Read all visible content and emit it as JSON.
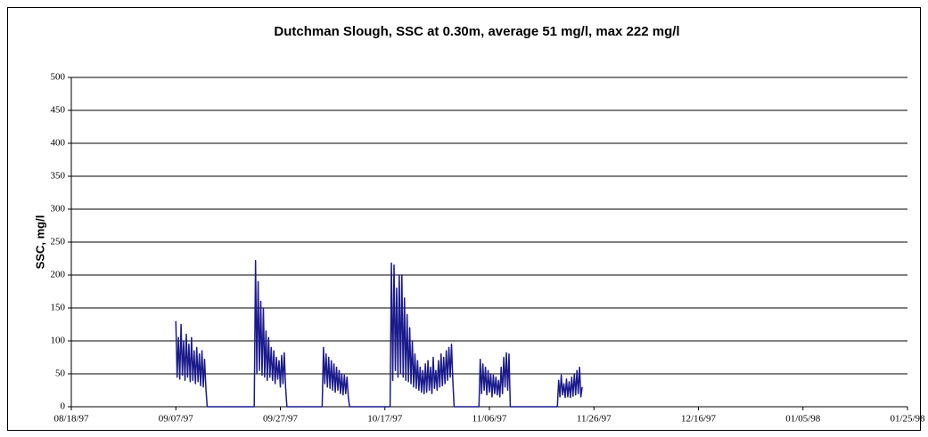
{
  "chart_data": {
    "type": "line",
    "title": "Dutchman Slough, SSC at 0.30m, average 51 mg/l, max 222 mg/l",
    "y_label": "SSC, mg/l",
    "xlim": [
      "08/18/97",
      "01/25/98"
    ],
    "xticks": [
      "08/18/97",
      "09/07/97",
      "09/27/97",
      "10/17/97",
      "11/06/97",
      "11/26/97",
      "12/16/97",
      "01/05/98",
      "01/25/98"
    ],
    "ylim": [
      0,
      500
    ],
    "yticks": [
      0,
      50,
      100,
      150,
      200,
      250,
      300,
      350,
      400,
      450,
      500
    ],
    "grid": true,
    "x": [
      "09/07/97 00:00",
      "09/07/97 06:00",
      "09/07/97 12:00",
      "09/07/97 18:00",
      "09/08/97 00:00",
      "09/08/97 06:00",
      "09/08/97 12:00",
      "09/08/97 18:00",
      "09/09/97 00:00",
      "09/09/97 06:00",
      "09/09/97 12:00",
      "09/09/97 18:00",
      "09/10/97 00:00",
      "09/10/97 06:00",
      "09/10/97 12:00",
      "09/10/97 18:00",
      "09/11/97 00:00",
      "09/11/97 06:00",
      "09/11/97 12:00",
      "09/11/97 18:00",
      "09/12/97 00:00",
      "09/12/97 06:00",
      "09/12/97 12:00",
      "09/12/97 18:00",
      "09/13/97 00:00",
      "09/22/97 00:00",
      "09/22/97 06:00",
      "09/22/97 12:00",
      "09/22/97 18:00",
      "09/23/97 00:00",
      "09/23/97 06:00",
      "09/23/97 12:00",
      "09/23/97 18:00",
      "09/24/97 00:00",
      "09/24/97 06:00",
      "09/24/97 12:00",
      "09/24/97 18:00",
      "09/25/97 00:00",
      "09/25/97 06:00",
      "09/25/97 12:00",
      "09/25/97 18:00",
      "09/26/97 00:00",
      "09/26/97 06:00",
      "09/26/97 12:00",
      "09/26/97 18:00",
      "09/27/97 00:00",
      "09/27/97 06:00",
      "09/27/97 12:00",
      "09/27/97 18:00",
      "09/28/97 00:00",
      "09/28/97 06:00",
      "10/05/97 00:00",
      "10/05/97 06:00",
      "10/05/97 12:00",
      "10/05/97 18:00",
      "10/06/97 00:00",
      "10/06/97 06:00",
      "10/06/97 12:00",
      "10/06/97 18:00",
      "10/07/97 00:00",
      "10/07/97 06:00",
      "10/07/97 12:00",
      "10/07/97 18:00",
      "10/08/97 00:00",
      "10/08/97 06:00",
      "10/08/97 12:00",
      "10/08/97 18:00",
      "10/09/97 00:00",
      "10/09/97 06:00",
      "10/09/97 12:00",
      "10/09/97 18:00",
      "10/10/97 00:00",
      "10/10/97 06:00",
      "10/18/97 00:00",
      "10/18/97 06:00",
      "10/18/97 12:00",
      "10/18/97 18:00",
      "10/19/97 00:00",
      "10/19/97 06:00",
      "10/19/97 12:00",
      "10/19/97 18:00",
      "10/20/97 00:00",
      "10/20/97 06:00",
      "10/20/97 12:00",
      "10/20/97 18:00",
      "10/21/97 00:00",
      "10/21/97 06:00",
      "10/21/97 12:00",
      "10/21/97 18:00",
      "10/22/97 00:00",
      "10/22/97 06:00",
      "10/22/97 12:00",
      "10/22/97 18:00",
      "10/23/97 00:00",
      "10/23/97 06:00",
      "10/23/97 12:00",
      "10/23/97 18:00",
      "10/24/97 00:00",
      "10/24/97 06:00",
      "10/24/97 12:00",
      "10/24/97 18:00",
      "10/25/97 00:00",
      "10/25/97 06:00",
      "10/25/97 12:00",
      "10/25/97 18:00",
      "10/26/97 00:00",
      "10/26/97 06:00",
      "10/26/97 12:00",
      "10/26/97 18:00",
      "10/27/97 00:00",
      "10/27/97 06:00",
      "10/27/97 12:00",
      "10/27/97 18:00",
      "10/28/97 00:00",
      "10/28/97 06:00",
      "10/28/97 12:00",
      "10/28/97 18:00",
      "10/29/97 00:00",
      "10/29/97 06:00",
      "10/29/97 12:00",
      "10/29/97 18:00",
      "10/30/97 00:00",
      "10/30/97 06:00",
      "11/04/97 00:00",
      "11/04/97 06:00",
      "11/04/97 12:00",
      "11/04/97 18:00",
      "11/05/97 00:00",
      "11/05/97 06:00",
      "11/05/97 12:00",
      "11/05/97 18:00",
      "11/06/97 00:00",
      "11/06/97 06:00",
      "11/06/97 12:00",
      "11/06/97 18:00",
      "11/07/97 00:00",
      "11/07/97 06:00",
      "11/07/97 12:00",
      "11/07/97 18:00",
      "11/08/97 00:00",
      "11/08/97 06:00",
      "11/08/97 12:00",
      "11/08/97 18:00",
      "11/09/97 00:00",
      "11/09/97 06:00",
      "11/09/97 12:00",
      "11/09/97 18:00",
      "11/10/97 00:00",
      "11/19/97 00:00",
      "11/19/97 06:00",
      "11/19/97 12:00",
      "11/19/97 18:00",
      "11/20/97 00:00",
      "11/20/97 06:00",
      "11/20/97 12:00",
      "11/20/97 18:00",
      "11/21/97 00:00",
      "11/21/97 06:00",
      "11/21/97 12:00",
      "11/21/97 18:00",
      "11/22/97 00:00",
      "11/22/97 06:00",
      "11/22/97 12:00",
      "11/22/97 18:00",
      "11/23/97 00:00",
      "11/23/97 06:00",
      "11/23/97 12:00",
      "11/23/97 18:00"
    ],
    "series": [
      {
        "color": "#1a1a8c",
        "values": [
          130,
          45,
          105,
          42,
          125,
          48,
          100,
          40,
          110,
          45,
          95,
          38,
          105,
          40,
          85,
          35,
          90,
          38,
          80,
          32,
          85,
          30,
          72,
          28,
          0,
          0,
          222,
          50,
          190,
          55,
          160,
          48,
          150,
          45,
          115,
          40,
          105,
          45,
          90,
          40,
          85,
          35,
          75,
          42,
          70,
          30,
          78,
          35,
          82,
          30,
          0,
          0,
          90,
          35,
          80,
          30,
          75,
          28,
          70,
          25,
          65,
          22,
          60,
          25,
          55,
          20,
          50,
          18,
          48,
          20,
          45,
          15,
          0,
          0,
          218,
          40,
          215,
          55,
          180,
          45,
          200,
          50,
          200,
          45,
          165,
          40,
          140,
          38,
          120,
          35,
          100,
          30,
          80,
          28,
          70,
          25,
          60,
          22,
          55,
          20,
          65,
          22,
          70,
          25,
          60,
          20,
          75,
          28,
          55,
          25,
          70,
          30,
          80,
          32,
          75,
          35,
          85,
          40,
          90,
          45,
          95,
          40,
          0,
          0,
          72,
          20,
          65,
          25,
          60,
          18,
          55,
          22,
          50,
          15,
          48,
          20,
          45,
          18,
          40,
          15,
          60,
          20,
          75,
          30,
          82,
          25,
          80,
          0,
          0,
          40,
          15,
          48,
          18,
          35,
          14,
          42,
          15,
          38,
          14,
          45,
          16,
          50,
          18,
          55,
          20,
          60,
          15,
          30
        ]
      }
    ]
  }
}
